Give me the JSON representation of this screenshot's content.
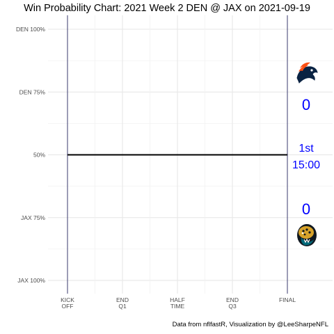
{
  "title": "Win Probability Chart: 2021 Week 2 DEN @ JAX on 2021-09-19",
  "caption": "Data from nflfastR, Visualization by @LeeSharpeNFL",
  "chart_data": {
    "type": "line",
    "y_ticks": [
      {
        "value": 1.0,
        "label": "DEN 100%"
      },
      {
        "value": 0.75,
        "label": "DEN 75%"
      },
      {
        "value": 0.5,
        "label": "50%"
      },
      {
        "value": 0.25,
        "label": "JAX 75%"
      },
      {
        "value": 0.0,
        "label": "JAX 100%"
      }
    ],
    "x_ticks": [
      {
        "value": 0,
        "lines": [
          "KICK",
          "OFF"
        ]
      },
      {
        "value": 900,
        "lines": [
          "END",
          "Q1"
        ]
      },
      {
        "value": 1800,
        "lines": [
          "HALF",
          "TIME"
        ]
      },
      {
        "value": 2700,
        "lines": [
          "END",
          "Q3"
        ]
      },
      {
        "value": 3600,
        "lines": [
          "FINAL"
        ]
      }
    ],
    "xlim": [
      0,
      3600
    ],
    "ylim": [
      0,
      1
    ],
    "grid": true,
    "series": [
      {
        "x": [
          0,
          3600
        ],
        "y": [
          0.5,
          0.5
        ],
        "color": "#000000"
      }
    ],
    "scoreboard": {
      "away_team": "DEN",
      "home_team": "JAX",
      "away_score": "0",
      "home_score": "0",
      "quarter": "1st",
      "clock": "15:00",
      "color": "#0000ff"
    },
    "logos": {
      "away": "broncos-logo-icon",
      "home": "jaguars-logo-icon"
    }
  }
}
